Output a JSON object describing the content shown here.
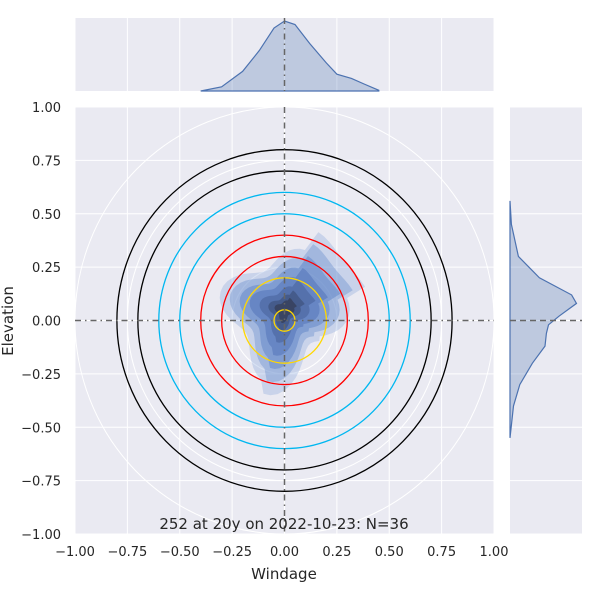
{
  "chart_data": {
    "type": "kde-joint",
    "caption": "252 at 20y on 2022-10-23: N=36",
    "xlabel": "Windage",
    "ylabel": "Elevation",
    "xlim": [
      -1.0,
      1.0
    ],
    "ylim": [
      -1.0,
      1.0
    ],
    "x_ticks": [
      "−1.00",
      "−0.75",
      "−0.50",
      "−0.25",
      "0.00",
      "0.25",
      "0.50",
      "0.75",
      "1.00"
    ],
    "y_ticks": [
      "1.00",
      "0.75",
      "0.50",
      "0.25",
      "0.00",
      "−0.25",
      "−0.50",
      "−0.75",
      "−1.00"
    ],
    "x_tick_values": [
      -1.0,
      -0.75,
      -0.5,
      -0.25,
      0.0,
      0.25,
      0.5,
      0.75,
      1.0
    ],
    "y_tick_values": [
      1.0,
      0.75,
      0.5,
      0.25,
      0.0,
      -0.25,
      -0.5,
      -0.75,
      -1.0
    ],
    "grid": true,
    "reference_lines": {
      "x": 0.0,
      "y": 0.0,
      "style": "dashed"
    },
    "guide_circle_radii": [
      0.25,
      0.5,
      0.75,
      1.0
    ],
    "target_rings": [
      {
        "radius": 0.8,
        "color": "#000000"
      },
      {
        "radius": 0.7,
        "color": "#000000"
      },
      {
        "radius": 0.6,
        "color": "#00b7f0"
      },
      {
        "radius": 0.5,
        "color": "#00b7f0"
      },
      {
        "radius": 0.4,
        "color": "#ff0000"
      },
      {
        "radius": 0.3,
        "color": "#ff0000"
      },
      {
        "radius": 0.2,
        "color": "#ffd700"
      },
      {
        "radius": 0.05,
        "color": "#ffd700"
      }
    ],
    "density_center": [
      0.0,
      0.05
    ],
    "marginal_x": [
      [
        -0.4,
        0.0
      ],
      [
        -0.3,
        0.06
      ],
      [
        -0.2,
        0.28
      ],
      [
        -0.12,
        0.58
      ],
      [
        -0.05,
        0.9
      ],
      [
        0.0,
        1.0
      ],
      [
        0.05,
        0.95
      ],
      [
        0.12,
        0.68
      ],
      [
        0.2,
        0.4
      ],
      [
        0.25,
        0.24
      ],
      [
        0.32,
        0.18
      ],
      [
        0.38,
        0.1
      ],
      [
        0.45,
        0.01
      ]
    ],
    "marginal_y": [
      [
        0.56,
        0.0
      ],
      [
        0.45,
        0.02
      ],
      [
        0.3,
        0.12
      ],
      [
        0.2,
        0.42
      ],
      [
        0.12,
        0.88
      ],
      [
        0.08,
        0.95
      ],
      [
        0.02,
        0.7
      ],
      [
        -0.02,
        0.55
      ],
      [
        -0.06,
        0.52
      ],
      [
        -0.12,
        0.5
      ],
      [
        -0.2,
        0.32
      ],
      [
        -0.3,
        0.14
      ],
      [
        -0.4,
        0.05
      ],
      [
        -0.55,
        0.0
      ]
    ],
    "colors": {
      "panel_bg": "#eaeaf2",
      "grid": "#ffffff",
      "density_fill": "#4c72b0",
      "density_line": "#4c72b0",
      "ref_line": "#666666"
    }
  }
}
